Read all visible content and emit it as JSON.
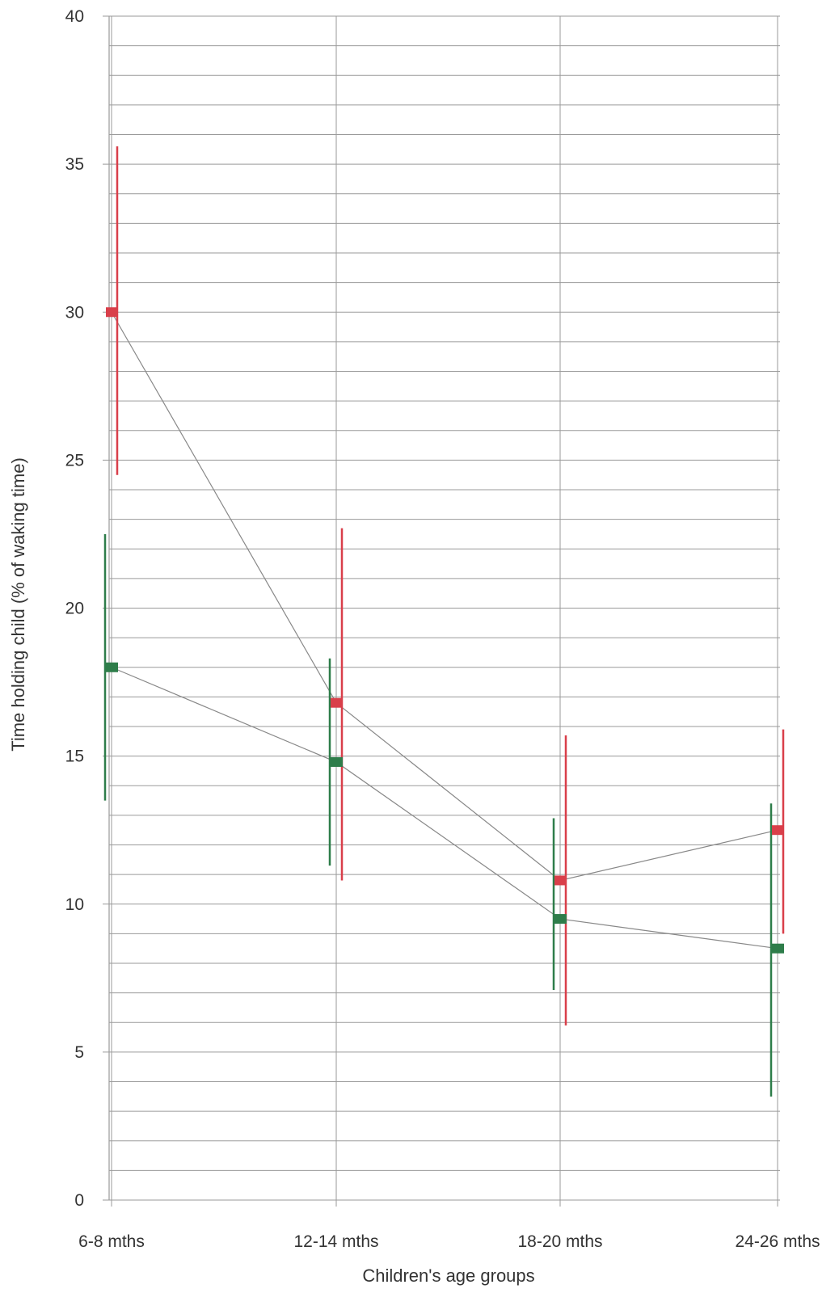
{
  "chart_data": {
    "type": "line",
    "title": "",
    "xlabel": "Children's age groups",
    "ylabel": "Time holding child (% of waking time)",
    "categories": [
      "6-8 mths",
      "12-14 mths",
      "18-20 mths",
      "24-26 mths"
    ],
    "ylim": [
      0,
      40
    ],
    "yticks": [
      0,
      5,
      10,
      15,
      20,
      25,
      30,
      35,
      40
    ],
    "minor_grid_step": 1,
    "grid": true,
    "legend": "none",
    "series": [
      {
        "color": "#d93f4a",
        "values": [
          30.0,
          16.8,
          10.8,
          12.5
        ],
        "error_low": [
          24.5,
          10.8,
          5.9,
          9.0
        ],
        "error_high": [
          35.6,
          22.7,
          15.7,
          15.9
        ]
      },
      {
        "color": "#2e7d4a",
        "values": [
          18.0,
          14.8,
          9.5,
          8.5
        ],
        "error_low": [
          13.5,
          11.3,
          7.1,
          3.5
        ],
        "error_high": [
          22.5,
          18.3,
          12.9,
          13.4
        ]
      }
    ],
    "connector_color": "#888888",
    "grid_color": "#9a9a9a"
  }
}
